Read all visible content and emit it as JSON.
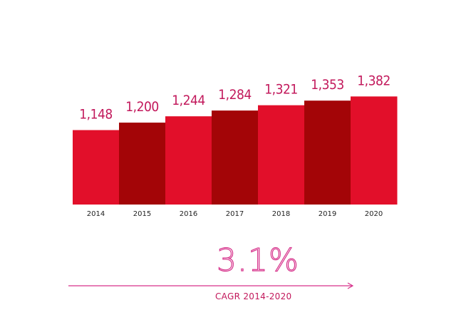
{
  "chart_data": {
    "type": "bar",
    "categories": [
      "2014",
      "2015",
      "2016",
      "2017",
      "2018",
      "2019",
      "2020"
    ],
    "values": [
      1148,
      1200,
      1244,
      1284,
      1321,
      1353,
      1382
    ],
    "value_labels": [
      "1,148",
      "1,200",
      "1,244",
      "1,284",
      "1,321",
      "1,353",
      "1,382"
    ],
    "bar_colors": [
      "#e20f2a",
      "#a30507",
      "#e20f2a",
      "#a30507",
      "#e20f2a",
      "#a30507",
      "#e20f2a"
    ],
    "label_color": "#c2185b",
    "grid": false,
    "legend": "none"
  },
  "cagr": {
    "value": "3.1%",
    "label": "CAGR 2014-2020",
    "arrow_color": "#d6308a"
  }
}
